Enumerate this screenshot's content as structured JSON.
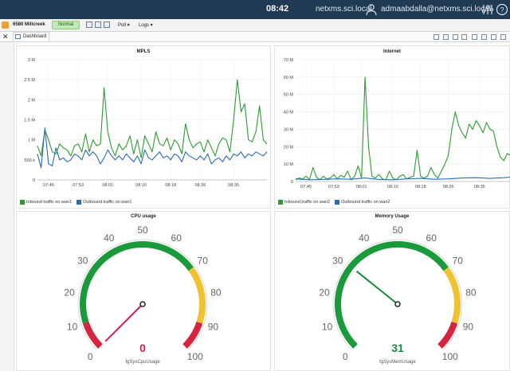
{
  "topbar": {
    "time": "08:42",
    "server": "netxms.sci.local",
    "user": "admaabdalla@netxms.sci.local",
    "icons": [
      "user-icon",
      "sliders-icon",
      "help-icon"
    ]
  },
  "toolbar": {
    "node_name": "6580 Millcreek",
    "status": "Normal",
    "menus": [
      "Poll",
      "Logs"
    ]
  },
  "tab": {
    "label": "Dashboard"
  },
  "colors": {
    "inbound": "#2e9b32",
    "outbound": "#2b6cb0",
    "gauge_green": "#1a9a3a",
    "gauge_yellow": "#f2c12e",
    "gauge_red": "#d62440",
    "cpu_value": "#d81b4a",
    "mem_value": "#1a8a3a"
  },
  "panels": {
    "mpls": {
      "title": "MPLS",
      "legend": [
        "Inbound traffic on wan1",
        "Outbound traffic on wan1"
      ]
    },
    "internet": {
      "title": "Internet",
      "legend": [
        "Inbound traffic on wan2",
        "Outbound traffic on wan2"
      ]
    },
    "cpu": {
      "title": "CPU usage",
      "sublabel": "fgSysCpuUsage",
      "value": "0"
    },
    "memory": {
      "title": "Memory Usage",
      "sublabel": "fgSysMemUsage",
      "value": "31"
    }
  },
  "chart_data": [
    {
      "type": "line",
      "title": "MPLS",
      "y_tick_labels": [
        "0",
        "500 k",
        "1 M",
        "1.5 M",
        "2 M",
        "2.5 M",
        "3 M"
      ],
      "ylim": [
        0,
        3000000
      ],
      "x_tick_labels": [
        "07:45",
        "07:53",
        "08:01",
        "08:10",
        "08:18",
        "08:26",
        "08:35"
      ],
      "x_tick_minutes": [
        465,
        473,
        481,
        490,
        498,
        506,
        515
      ],
      "xlim_minutes": [
        462,
        524
      ],
      "grid": true,
      "legend_position": "bottom-left",
      "series": [
        {
          "name": "Inbound traffic on wan1",
          "color": "#2e9b32",
          "x_minutes": [
            462,
            463,
            464,
            465,
            466,
            467,
            468,
            469,
            470,
            471,
            472,
            473,
            474,
            475,
            476,
            477,
            478,
            479,
            480,
            481,
            482,
            483,
            484,
            485,
            486,
            487,
            488,
            489,
            490,
            491,
            492,
            493,
            494,
            495,
            496,
            497,
            498,
            499,
            500,
            501,
            502,
            503,
            504,
            505,
            506,
            507,
            508,
            509,
            510,
            511,
            512,
            513,
            514,
            515,
            516,
            517,
            518,
            519,
            520,
            521,
            522,
            523,
            524
          ],
          "values": [
            850000,
            600000,
            1250000,
            1000000,
            700000,
            650000,
            900000,
            800000,
            750000,
            600000,
            850000,
            900000,
            700000,
            1150000,
            700000,
            1000000,
            850000,
            900000,
            2300000,
            1200000,
            800000,
            600000,
            900000,
            750000,
            850000,
            1100000,
            650000,
            1000000,
            550000,
            1100000,
            900000,
            700000,
            1200000,
            900000,
            850000,
            1050000,
            750000,
            1000000,
            900000,
            650000,
            1400000,
            1000000,
            800000,
            900000,
            950000,
            700000,
            1000000,
            800000,
            600000,
            900000,
            1050000,
            1000000,
            700000,
            1500000,
            2500000,
            1700000,
            1900000,
            1000000,
            950000,
            1200000,
            1850000,
            1000000,
            900000
          ]
        },
        {
          "name": "Outbound traffic on wan1",
          "color": "#2b6cb0",
          "x_minutes": [
            462,
            463,
            464,
            465,
            466,
            467,
            468,
            469,
            470,
            471,
            472,
            473,
            474,
            475,
            476,
            477,
            478,
            479,
            480,
            481,
            482,
            483,
            484,
            485,
            486,
            487,
            488,
            489,
            490,
            491,
            492,
            493,
            494,
            495,
            496,
            497,
            498,
            499,
            500,
            501,
            502,
            503,
            504,
            505,
            506,
            507,
            508,
            509,
            510,
            511,
            512,
            513,
            514,
            515,
            516,
            517,
            518,
            519,
            520,
            521,
            522,
            523,
            524
          ],
          "values": [
            650000,
            300000,
            1300000,
            400000,
            350000,
            800000,
            500000,
            550000,
            450000,
            500000,
            650000,
            600000,
            500000,
            750000,
            600000,
            700000,
            600000,
            400000,
            550000,
            750000,
            600000,
            500000,
            600000,
            500000,
            650000,
            550000,
            450000,
            600000,
            400000,
            750000,
            550000,
            500000,
            600000,
            700000,
            550000,
            600000,
            500000,
            650000,
            600000,
            450000,
            700000,
            600000,
            550000,
            500000,
            600000,
            500000,
            650000,
            400000,
            500000,
            550000,
            450000,
            600000,
            500000,
            650000,
            600000,
            700000,
            550000,
            650000,
            600000,
            700000,
            650000,
            600000,
            700000
          ]
        }
      ]
    },
    {
      "type": "line",
      "title": "Internet",
      "y_tick_labels": [
        "0",
        "10 M",
        "20 M",
        "30 M",
        "40 M",
        "50 M",
        "60 M",
        "70 M"
      ],
      "ylim": [
        0,
        70000000
      ],
      "x_tick_labels": [
        "07:45",
        "07:53",
        "08:01",
        "08:10",
        "08:18",
        "08:26",
        "08:35"
      ],
      "x_tick_minutes": [
        465,
        473,
        481,
        490,
        498,
        506,
        515
      ],
      "xlim_minutes": [
        462,
        524
      ],
      "grid": true,
      "legend_position": "bottom-left",
      "series": [
        {
          "name": "Inbound traffic on wan2",
          "color": "#2e9b32",
          "x_minutes": [
            462,
            463,
            464,
            465,
            466,
            467,
            468,
            469,
            470,
            471,
            472,
            473,
            474,
            475,
            476,
            477,
            478,
            479,
            480,
            481,
            482,
            483,
            484,
            485,
            486,
            487,
            488,
            489,
            490,
            491,
            492,
            493,
            494,
            495,
            496,
            497,
            498,
            499,
            500,
            501,
            502,
            503,
            504,
            505,
            506,
            507,
            508,
            509,
            510,
            511,
            512,
            513,
            514,
            515,
            516,
            517,
            518,
            519,
            520,
            521,
            522,
            523,
            524
          ],
          "values": [
            1000000,
            2000000,
            1500000,
            3000000,
            1200000,
            8000000,
            2500000,
            1000000,
            3000000,
            1500000,
            2000000,
            4000000,
            1500000,
            3500000,
            2500000,
            6000000,
            1000000,
            3000000,
            9000000,
            2000000,
            60000000,
            20000000,
            3000000,
            2000000,
            4000000,
            1500000,
            1000000,
            6000000,
            2000000,
            1000000,
            3000000,
            4000000,
            1500000,
            2500000,
            3000000,
            18000000,
            3000000,
            2000000,
            3000000,
            8000000,
            4000000,
            2000000,
            6000000,
            10000000,
            15000000,
            30000000,
            40000000,
            32000000,
            28000000,
            25000000,
            33000000,
            30000000,
            35000000,
            32000000,
            28000000,
            34000000,
            30000000,
            29000000,
            20000000,
            14000000,
            12000000,
            16000000,
            15000000
          ]
        },
        {
          "name": "Outbound traffic on wan2",
          "color": "#2b6cb0",
          "x_minutes": [
            462,
            466,
            470,
            474,
            478,
            482,
            486,
            490,
            494,
            498,
            502,
            506,
            510,
            514,
            518,
            522,
            524
          ],
          "values": [
            1500000,
            1000000,
            1200000,
            1500000,
            1300000,
            2000000,
            1200000,
            1000000,
            1500000,
            1800000,
            1300000,
            1500000,
            2000000,
            2200000,
            1800000,
            2200000,
            2500000
          ]
        }
      ]
    }
  ],
  "gauges": [
    {
      "label": "CPU usage",
      "metric": "fgSysCpuUsage",
      "value": 0,
      "min": 0,
      "max": 100,
      "tick_labels": [
        "0",
        "10",
        "20",
        "30",
        "40",
        "50",
        "60",
        "70",
        "80",
        "90",
        "100"
      ],
      "zones": [
        {
          "from": 0,
          "to": 10,
          "color": "red"
        },
        {
          "from": 10,
          "to": 70,
          "color": "green"
        },
        {
          "from": 70,
          "to": 90,
          "color": "yellow"
        },
        {
          "from": 90,
          "to": 100,
          "color": "red"
        }
      ]
    },
    {
      "label": "Memory Usage",
      "metric": "fgSysMemUsage",
      "value": 31,
      "min": 0,
      "max": 100,
      "tick_labels": [
        "0",
        "10",
        "20",
        "30",
        "40",
        "50",
        "60",
        "70",
        "80",
        "90",
        "100"
      ],
      "zones": [
        {
          "from": 0,
          "to": 70,
          "color": "green"
        },
        {
          "from": 70,
          "to": 90,
          "color": "yellow"
        },
        {
          "from": 90,
          "to": 100,
          "color": "red"
        }
      ]
    }
  ]
}
